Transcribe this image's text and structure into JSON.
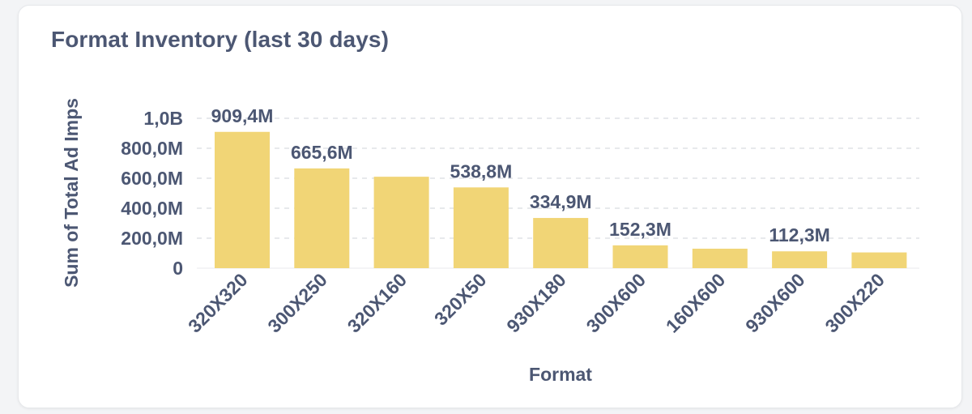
{
  "card": {
    "title": "Format Inventory (last 30 days)"
  },
  "colors": {
    "bar": "#f1d576",
    "text": "#4c5773",
    "grid": "#dfe2e6",
    "background": "#ffffff"
  },
  "chart_data": {
    "type": "bar",
    "title": "Format Inventory (last 30 days)",
    "xlabel": "Format",
    "ylabel": "Sum of Total Ad Imps",
    "categories": [
      "320X320",
      "300X250",
      "320X160",
      "320X50",
      "930X180",
      "300X600",
      "160X600",
      "930X600",
      "300X220"
    ],
    "values": [
      909400000,
      665600000,
      610000000,
      538800000,
      334900000,
      152300000,
      130000000,
      112300000,
      105000000
    ],
    "data_labels": [
      "909,4M",
      "665,6M",
      "",
      "538,8M",
      "334,9M",
      "152,3M",
      "",
      "112,3M",
      ""
    ],
    "ylim": [
      0,
      1000000000
    ],
    "y_ticks": [
      {
        "value": 0,
        "label": "0"
      },
      {
        "value": 200000000,
        "label": "200,0M"
      },
      {
        "value": 400000000,
        "label": "400,0M"
      },
      {
        "value": 600000000,
        "label": "600,0M"
      },
      {
        "value": 800000000,
        "label": "800,0M"
      },
      {
        "value": 1000000000,
        "label": "1,0B"
      }
    ],
    "grid": true,
    "legend": "none"
  }
}
